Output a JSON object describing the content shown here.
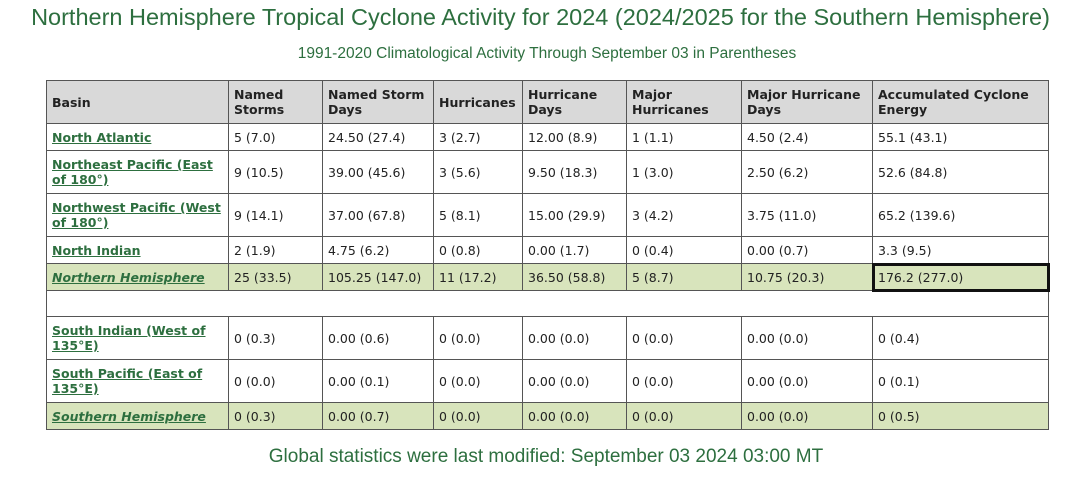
{
  "title": "Northern Hemisphere Tropical Cyclone Activity for 2024 (2024/2025 for the Southern Hemisphere)",
  "subtitle": "1991-2020 Climatological Activity Through September 03 in Parentheses",
  "footer": "Global statistics were last modified: September 03 2024 03:00 MT",
  "columns": [
    "Basin",
    "Named Storms",
    "Named Storm Days",
    "Hurricanes",
    "Hurricane Days",
    "Major Hurricanes",
    "Major Hurricane Days",
    "Accumulated Cyclone Energy"
  ],
  "rows": [
    {
      "basin": "North Atlantic",
      "cells": [
        "5 (7.0)",
        "24.50 (27.4)",
        "3 (2.7)",
        "12.00 (8.9)",
        "1 (1.1)",
        "4.50 (2.4)",
        "55.1 (43.1)"
      ]
    },
    {
      "basin": "Northeast Pacific (East of 180°)",
      "cells": [
        "9 (10.5)",
        "39.00 (45.6)",
        "3 (5.6)",
        "9.50 (18.3)",
        "1 (3.0)",
        "2.50 (6.2)",
        "52.6 (84.8)"
      ]
    },
    {
      "basin": "Northwest Pacific (West of 180°)",
      "cells": [
        "9 (14.1)",
        "37.00 (67.8)",
        "5 (8.1)",
        "15.00 (29.9)",
        "3 (4.2)",
        "3.75 (11.0)",
        "65.2 (139.6)"
      ]
    },
    {
      "basin": "North Indian",
      "cells": [
        "2 (1.9)",
        "4.75 (6.2)",
        "0 (0.8)",
        "0.00 (1.7)",
        "0 (0.4)",
        "0.00 (0.7)",
        "3.3 (9.5)"
      ]
    },
    {
      "basin": "Northern Hemisphere",
      "cells": [
        "25 (33.5)",
        "105.25 (147.0)",
        "11 (17.2)",
        "36.50 (58.8)",
        "5 (8.7)",
        "10.75 (20.3)",
        "176.2 (277.0)"
      ]
    },
    {
      "basin": "South Indian (West of 135°E)",
      "cells": [
        "0 (0.3)",
        "0.00 (0.6)",
        "0 (0.0)",
        "0.00 (0.0)",
        "0 (0.0)",
        "0.00 (0.0)",
        "0 (0.4)"
      ]
    },
    {
      "basin": "South Pacific (East of 135°E)",
      "cells": [
        "0 (0.0)",
        "0.00 (0.1)",
        "0 (0.0)",
        "0.00 (0.0)",
        "0 (0.0)",
        "0.00 (0.0)",
        "0 (0.1)"
      ]
    },
    {
      "basin": "Southern Hemisphere",
      "cells": [
        "0 (0.3)",
        "0.00 (0.7)",
        "0 (0.0)",
        "0.00 (0.0)",
        "0 (0.0)",
        "0.00 (0.0)",
        "0 (0.5)"
      ]
    }
  ],
  "colors": {
    "accent": "#2d6f3f",
    "header_bg": "#d9d9d9",
    "total_row_bg": "#d8e4bc"
  }
}
